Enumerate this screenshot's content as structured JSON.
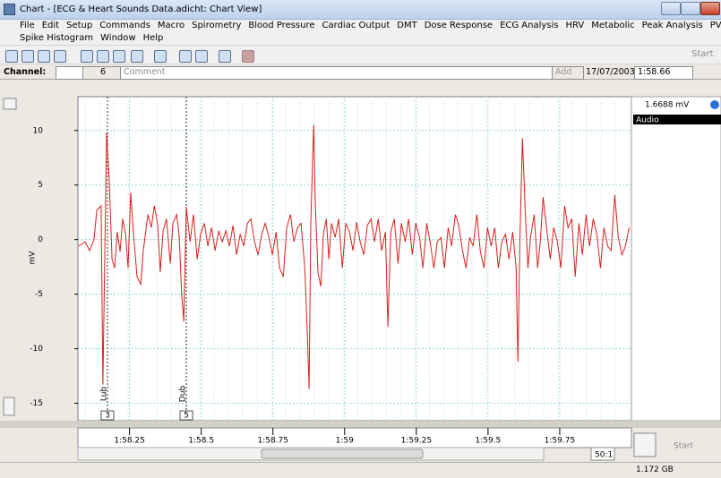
{
  "window": {
    "title": "Chart - [ECG & Heart Sounds Data.adicht: Chart View]",
    "menu": [
      "File",
      "Edit",
      "Setup",
      "Commands",
      "Macro",
      "Spirometry",
      "Blood Pressure",
      "Cardiac Output",
      "DMT",
      "Dose Response",
      "ECG Analysis",
      "HRV",
      "Metabolic",
      "Peak Analysis",
      "PVAN"
    ],
    "menu2": [
      "Spike Histogram",
      "Window",
      "Help"
    ],
    "toolbar_start": "Start"
  },
  "channel_bar": {
    "label": "Channel:",
    "channel": 6,
    "comment": "Comment",
    "add": "Add",
    "date": "17/07/2003",
    "time": "1:58.66"
  },
  "side_panel": {
    "reading": "1.6688 mV",
    "source": "Audio"
  },
  "bottom": {
    "ratio": "50:1",
    "start": "Start",
    "memory": "1.172 GB"
  },
  "chart_data": {
    "type": "line",
    "ylabel": "mV",
    "color": "#d8201c",
    "grid": true,
    "xlim": [
      118.07,
      120.0
    ],
    "ylim": [
      -16.6,
      13.1
    ],
    "xticks": [
      {
        "value": 118.25,
        "label": "1:58.25"
      },
      {
        "value": 118.5,
        "label": "1:58.5"
      },
      {
        "value": 118.75,
        "label": "1:58.75"
      },
      {
        "value": 119.0,
        "label": "1:59"
      },
      {
        "value": 119.25,
        "label": "1:59.25"
      },
      {
        "value": 119.5,
        "label": "1:59.5"
      },
      {
        "value": 119.75,
        "label": "1:59.75"
      }
    ],
    "yticks": [
      -15,
      -10,
      -5,
      0,
      5,
      10
    ],
    "comments": [
      {
        "x": 118.173,
        "label": "Lub",
        "number": 3
      },
      {
        "x": 118.448,
        "label": "Dub",
        "number": 5
      }
    ],
    "x": [
      118.073,
      118.095,
      118.111,
      118.126,
      118.136,
      118.151,
      118.157,
      118.17,
      118.179,
      118.189,
      118.198,
      118.207,
      118.217,
      118.226,
      118.236,
      118.245,
      118.254,
      118.264,
      118.276,
      118.289,
      118.298,
      118.314,
      118.326,
      118.336,
      118.348,
      118.357,
      118.367,
      118.379,
      118.392,
      118.401,
      118.414,
      118.423,
      118.432,
      118.439,
      118.448,
      118.461,
      118.473,
      118.486,
      118.498,
      118.511,
      118.523,
      118.536,
      118.548,
      118.561,
      118.573,
      118.586,
      118.598,
      118.611,
      118.623,
      118.636,
      118.648,
      118.661,
      118.673,
      118.686,
      118.698,
      118.711,
      118.723,
      118.736,
      118.748,
      118.761,
      118.773,
      118.786,
      118.798,
      118.811,
      118.823,
      118.836,
      118.848,
      118.861,
      118.87,
      118.876,
      118.882,
      118.892,
      118.898,
      118.907,
      118.917,
      118.926,
      118.936,
      118.945,
      118.954,
      118.967,
      118.979,
      118.992,
      119.004,
      119.017,
      119.029,
      119.042,
      119.054,
      119.067,
      119.079,
      119.092,
      119.104,
      119.117,
      119.129,
      119.142,
      119.151,
      119.161,
      119.173,
      119.186,
      119.198,
      119.211,
      119.223,
      119.236,
      119.248,
      119.261,
      119.273,
      119.286,
      119.298,
      119.311,
      119.323,
      119.336,
      119.348,
      119.361,
      119.373,
      119.386,
      119.398,
      119.411,
      119.423,
      119.436,
      119.448,
      119.461,
      119.473,
      119.486,
      119.498,
      119.511,
      119.523,
      119.536,
      119.548,
      119.561,
      119.573,
      119.586,
      119.598,
      119.604,
      119.611,
      119.62,
      119.629,
      119.639,
      119.648,
      119.661,
      119.673,
      119.682,
      119.692,
      119.704,
      119.717,
      119.729,
      119.742,
      119.754,
      119.767,
      119.779,
      119.792,
      119.804,
      119.817,
      119.829,
      119.842,
      119.854,
      119.867,
      119.879,
      119.892,
      119.904,
      119.917,
      119.929,
      119.942,
      119.954,
      119.967,
      119.979,
      119.992
    ],
    "values": [
      -0.6,
      -0.2,
      -1.0,
      0,
      2.7,
      3.1,
      -13.3,
      9.8,
      5.6,
      -1.8,
      -2.6,
      0.7,
      -1.1,
      1.9,
      0.5,
      -2.6,
      4.3,
      0.5,
      -3.4,
      -4.1,
      -1.0,
      2.3,
      1.1,
      3.1,
      1.5,
      -3.0,
      0.8,
      1.9,
      -2.2,
      1.5,
      2.3,
      0.4,
      -5.1,
      -7.5,
      3.0,
      -0.2,
      2.3,
      -1.8,
      0.5,
      1.5,
      -0.6,
      1.1,
      -1.0,
      0.8,
      -0.2,
      0.8,
      -0.6,
      1.3,
      -1.4,
      0.5,
      -0.6,
      1.5,
      1.9,
      -0.2,
      -1.4,
      0.5,
      1.5,
      0.2,
      -1.4,
      0.7,
      -2.6,
      -3.4,
      1.1,
      2.3,
      -0.2,
      1.1,
      1.5,
      -2.6,
      -8.8,
      -13.7,
      1.5,
      10.5,
      3.1,
      -3.0,
      -4.3,
      0.5,
      1.9,
      -1.8,
      1.5,
      0.2,
      1.9,
      -2.6,
      1.5,
      0.7,
      -1.0,
      1.6,
      -0.2,
      -1.4,
      1.3,
      1.9,
      -0.2,
      1.9,
      -1.0,
      0.7,
      -8.0,
      0.7,
      1.9,
      -2.2,
      1.5,
      -0.2,
      1.9,
      -1.4,
      1.5,
      0.2,
      -2.6,
      1.5,
      -0.2,
      -2.6,
      -0.2,
      0.2,
      -2.6,
      1.1,
      -0.6,
      2.3,
      1.3,
      -1.0,
      -2.6,
      0.2,
      -0.6,
      2.3,
      -1.1,
      -2.6,
      1.1,
      -0.6,
      1.1,
      -2.6,
      -0.2,
      0.5,
      -1.8,
      0.7,
      -2.6,
      -11.2,
      -0.2,
      9.3,
      3.1,
      -2.6,
      0.2,
      2.3,
      -2.6,
      -0.2,
      3.9,
      1.1,
      -1.8,
      1.1,
      -0.2,
      -2.6,
      3.1,
      1.1,
      1.9,
      -3.4,
      1.5,
      -1.4,
      2.3,
      -0.6,
      1.9,
      0.5,
      -2.6,
      1.1,
      -0.6,
      -1.0,
      4.1,
      0.2,
      -1.4,
      -0.6,
      1.1
    ]
  }
}
